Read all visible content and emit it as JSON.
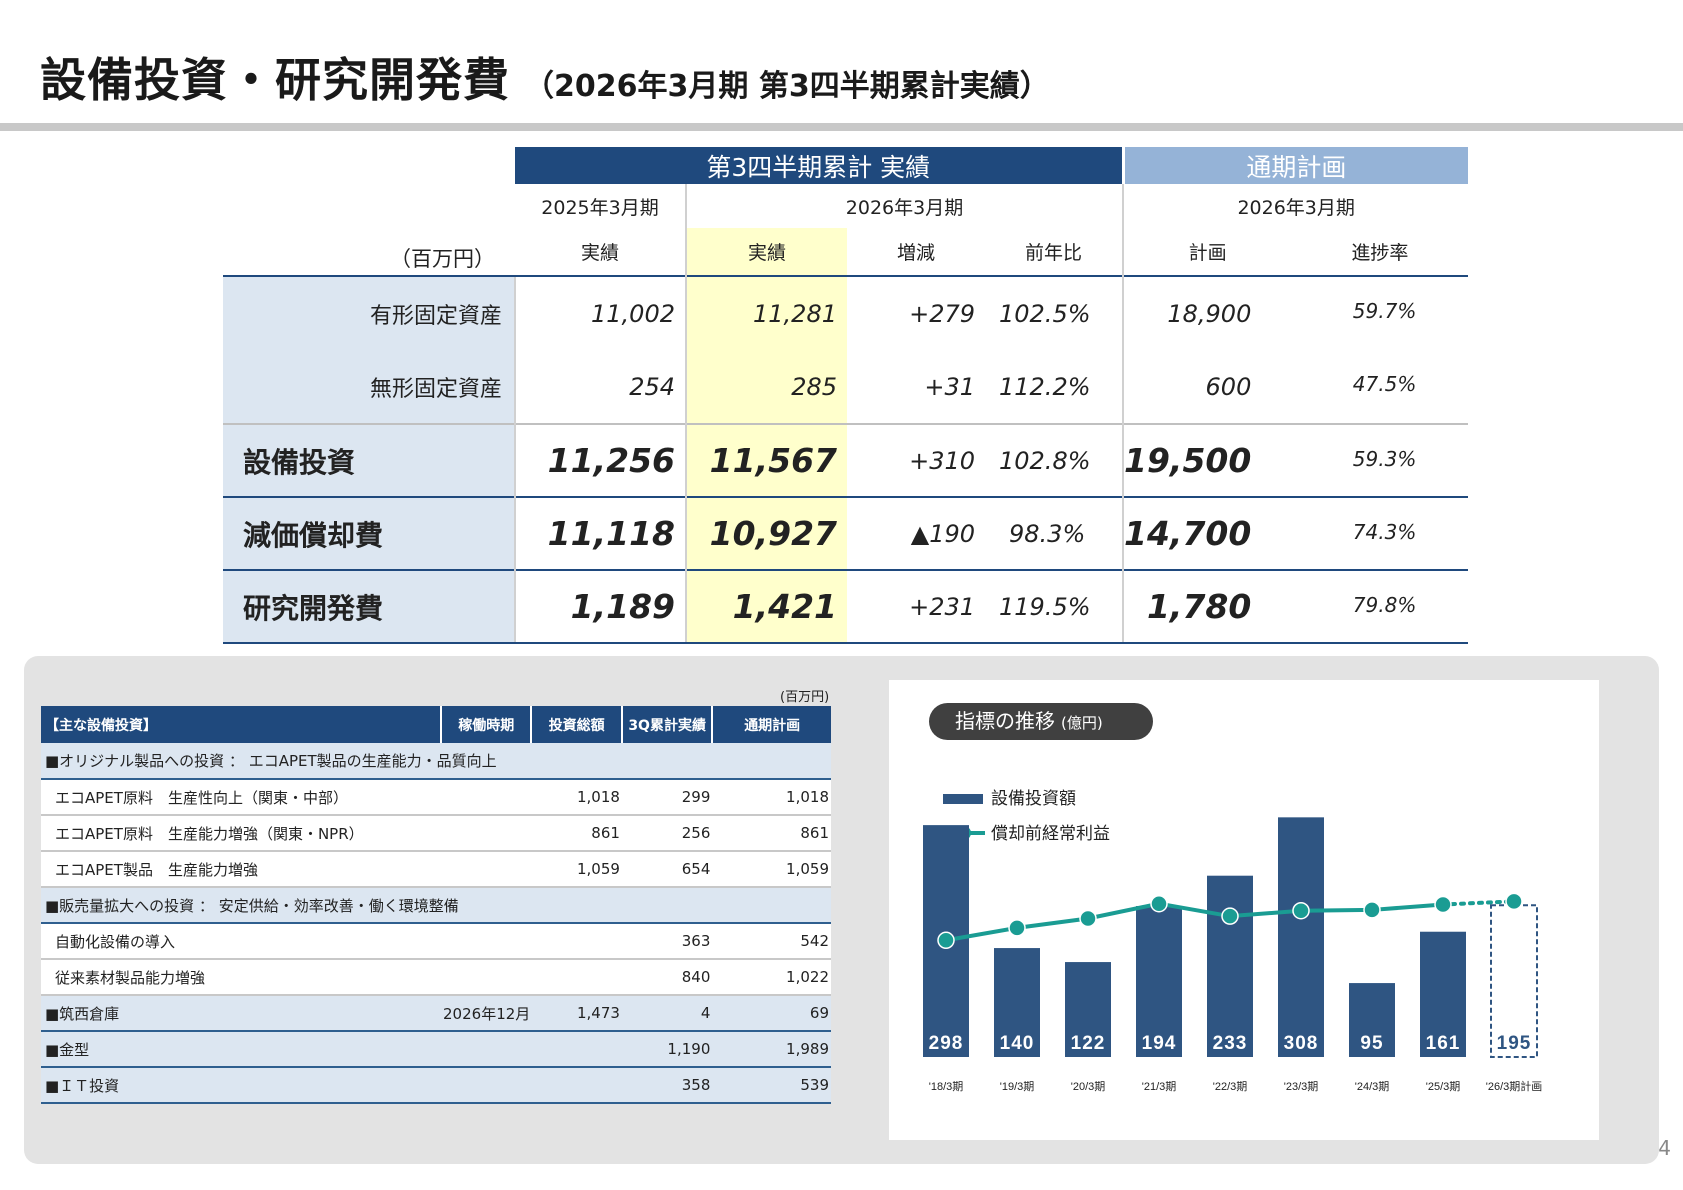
{
  "title": {
    "main": "設備投資・研究開発費",
    "sub": "（2026年3月期 第3四半期累計実績）"
  },
  "summary": {
    "header_q3": "第3四半期累計 実績",
    "header_plan": "通期計画",
    "year_prev": "2025年3月期",
    "year_cur": "2026年3月期",
    "year_plan": "2026年3月期",
    "unit": "（百万円）",
    "col_actual_prev": "実績",
    "col_actual_cur": "実績",
    "col_change": "増減",
    "col_yoy": "前年比",
    "col_plan": "計画",
    "col_progress": "進捗率",
    "rows": [
      {
        "label": "有形固定資産",
        "prev": "11,002",
        "cur": "11,281",
        "change": "+279",
        "yoy": "102.5%",
        "plan": "18,900",
        "progress": "59.7%"
      },
      {
        "label": "無形固定資産",
        "prev": "254",
        "cur": "285",
        "change": "+31",
        "yoy": "112.2%",
        "plan": "600",
        "progress": "47.5%"
      },
      {
        "label": "設備投資",
        "prev": "11,256",
        "cur": "11,567",
        "change": "+310",
        "yoy": "102.8%",
        "plan": "19,500",
        "progress": "59.3%"
      },
      {
        "label": "減価償却費",
        "prev": "11,118",
        "cur": "10,927",
        "change": "▲190",
        "yoy": "98.3%",
        "plan": "14,700",
        "progress": "74.3%"
      },
      {
        "label": "研究開発費",
        "prev": "1,189",
        "cur": "1,421",
        "change": "+231",
        "yoy": "119.5%",
        "plan": "1,780",
        "progress": "79.8%"
      }
    ]
  },
  "investments": {
    "unit": "(百万円)",
    "headers": [
      "【主な設備投資】",
      "稼働時期",
      "投資総額",
      "3Q累計実績",
      "通期計画"
    ],
    "rows": [
      {
        "name": "■オリジナル製品への投資 ： エコAPET製品の生産能力・品質向上",
        "timing": "",
        "total": "",
        "q3": "",
        "plan": "",
        "type": "sect"
      },
      {
        "name": "エコAPET原料　生産性向上（関東・中部）",
        "timing": "",
        "total": "1,018",
        "q3": "299",
        "plan": "1,018",
        "type": "item"
      },
      {
        "name": "エコAPET原料　生産能力増強（関東・NPR）",
        "timing": "",
        "total": "861",
        "q3": "256",
        "plan": "861",
        "type": "item"
      },
      {
        "name": "エコAPET製品　生産能力増強",
        "timing": "",
        "total": "1,059",
        "q3": "654",
        "plan": "1,059",
        "type": "item"
      },
      {
        "name": "■販売量拡大への投資 ： 安定供給・効率改善・働く環境整備",
        "timing": "",
        "total": "",
        "q3": "",
        "plan": "",
        "type": "sect"
      },
      {
        "name": "自動化設備の導入",
        "timing": "",
        "total": "",
        "q3": "363",
        "plan": "542",
        "type": "item"
      },
      {
        "name": "従来素材製品能力増強",
        "timing": "",
        "total": "",
        "q3": "840",
        "plan": "1,022",
        "type": "item"
      },
      {
        "name": "■筑西倉庫",
        "timing": "2026年12月",
        "total": "1,473",
        "q3": "4",
        "plan": "69",
        "type": "sect"
      },
      {
        "name": "■金型",
        "timing": "",
        "total": "",
        "q3": "1,190",
        "plan": "1,989",
        "type": "sect"
      },
      {
        "name": "■ＩＴ投資",
        "timing": "",
        "total": "",
        "q3": "358",
        "plan": "539",
        "type": "sect"
      }
    ]
  },
  "chart_title": "指標の推移",
  "chart_unit": "(億円)",
  "chart_data": {
    "type": "bar",
    "title": "指標の推移 (億円)",
    "categories": [
      "'18/3期",
      "'19/3期",
      "'20/3期",
      "'21/3期",
      "'22/3期",
      "'23/3期",
      "'24/3期",
      "'25/3期",
      "'26/3期計画"
    ],
    "series": [
      {
        "name": "設備投資額",
        "type": "bar",
        "values": [
          298,
          140,
          122,
          194,
          233,
          308,
          95,
          161,
          195
        ],
        "planned_last": true
      },
      {
        "name": "償却前経常利益",
        "type": "line",
        "values": [
          150,
          166,
          178,
          197,
          181,
          188,
          189,
          196,
          200
        ],
        "planned_last": true
      }
    ],
    "ylim": [
      0,
      320
    ],
    "legend": "top-left"
  },
  "colors": {
    "navy": "#1f497d",
    "light_blue": "#95b3d7",
    "bar": "#2f5582",
    "line": "#1a9c93",
    "highlight": "#ffffcc",
    "label_bg": "#dce6f1"
  },
  "page_number": "4"
}
